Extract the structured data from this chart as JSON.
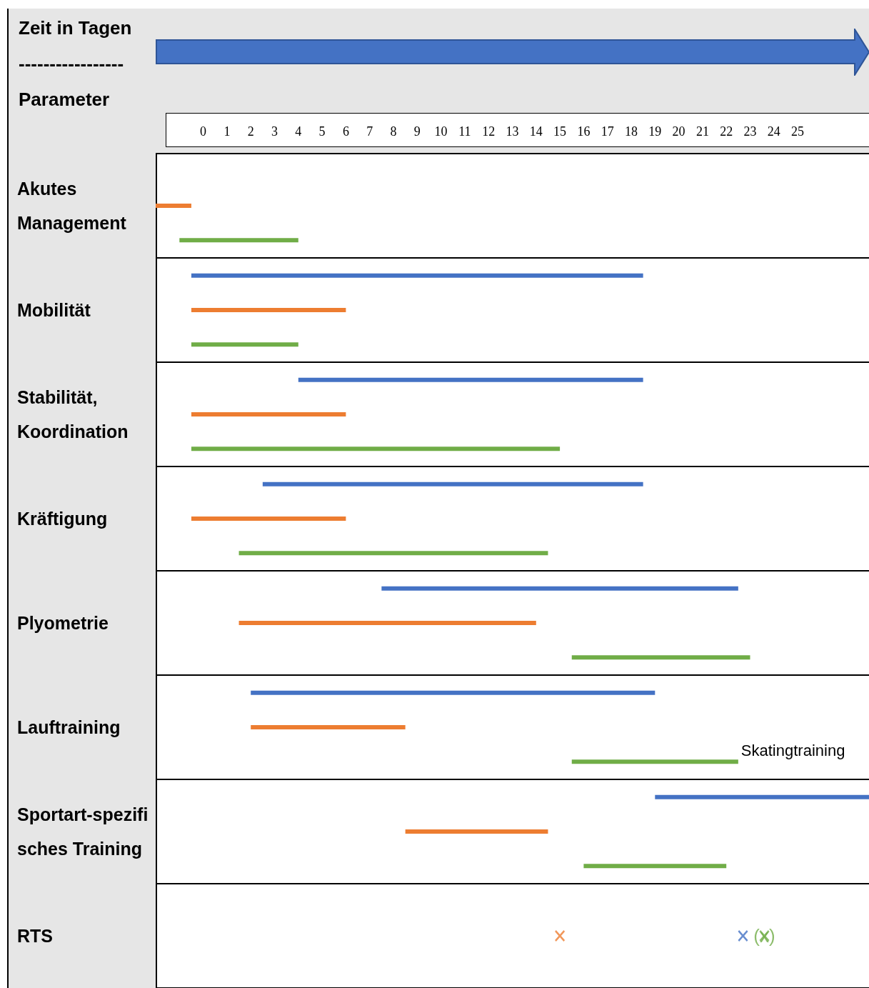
{
  "chart_data": {
    "type": "bar",
    "orientation": "horizontal",
    "xlabel": "Zeit in Tagen",
    "ylabel": "Parameter",
    "categories": [
      "Akutes Management",
      "Mobilität",
      "Stabilität, Koordination",
      "Kräftigung",
      "Plyometrie",
      "Lauftraining",
      "Sportart-spezifisches Training",
      "RTS"
    ],
    "series": [
      {
        "color": "#4472c4",
        "base": [
          null,
          -0.5,
          4,
          2.5,
          7.5,
          2,
          19,
          null
        ],
        "values": [
          null,
          19,
          14.5,
          16,
          15,
          17,
          9,
          null
        ]
      },
      {
        "color": "#ed7d31",
        "base": [
          -2,
          -0.5,
          -0.5,
          -0.5,
          1.5,
          2,
          8.5,
          null
        ],
        "values": [
          1.5,
          6.5,
          6.5,
          6.5,
          12.5,
          6.5,
          6,
          null
        ]
      },
      {
        "color": "#70ad47",
        "base": [
          -1,
          -0.5,
          -0.5,
          1.5,
          15.5,
          15.5,
          16,
          null
        ],
        "values": [
          5,
          4.5,
          15.5,
          13,
          7.5,
          7,
          6,
          null
        ],
        "value_labels": [
          null,
          null,
          null,
          null,
          null,
          "Skatingtraining",
          null,
          null
        ]
      },
      {
        "type": "scatter",
        "color": "#ed7d31",
        "marker": "cross",
        "values": [
          null,
          null,
          null,
          null,
          null,
          null,
          null,
          15
        ]
      },
      {
        "type": "scatter",
        "color": "#4472c4",
        "marker": "cross",
        "values": [
          null,
          null,
          null,
          null,
          null,
          null,
          null,
          22.7
        ]
      },
      {
        "type": "scatter",
        "color": "#70ad47",
        "marker": "cross",
        "values": [
          null,
          null,
          null,
          null,
          null,
          null,
          null,
          23.6
        ],
        "value_labels": [
          null,
          null,
          null,
          null,
          null,
          null,
          null,
          "(x)"
        ]
      }
    ],
    "xlim": [
      -2,
      28
    ],
    "xticks": [
      0,
      1,
      2,
      3,
      4,
      5,
      6,
      7,
      8,
      9,
      10,
      11,
      12,
      13,
      14,
      15,
      16,
      17,
      18,
      19,
      20,
      21,
      22,
      23,
      24,
      25
    ],
    "grid": "y",
    "annotations": [
      "-----------------"
    ]
  }
}
